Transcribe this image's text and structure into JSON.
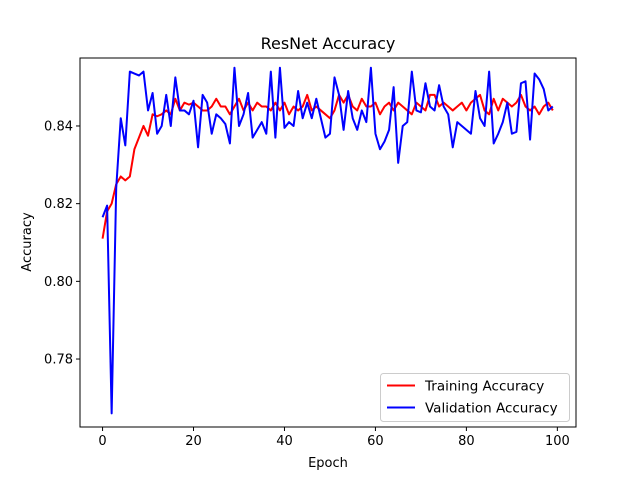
{
  "chart_data": {
    "type": "line",
    "title": "ResNet Accuracy",
    "xlabel": "Epoch",
    "ylabel": "Accuracy",
    "xlim": [
      -4.96,
      104.1
    ],
    "ylim": [
      0.7625,
      0.8575
    ],
    "xticks": [
      0,
      20,
      40,
      60,
      80,
      100
    ],
    "yticks": [
      0.78,
      0.8,
      0.82,
      0.84
    ],
    "ytick_labels": [
      "0.78",
      "0.80",
      "0.82",
      "0.84"
    ],
    "grid": false,
    "legend_position": "lower right",
    "series": [
      {
        "name": "Training Accuracy",
        "color": "#ff0000",
        "x": [
          0,
          1,
          2,
          3,
          4,
          5,
          6,
          7,
          8,
          9,
          10,
          11,
          12,
          13,
          14,
          15,
          16,
          17,
          18,
          19,
          20,
          21,
          22,
          23,
          24,
          25,
          26,
          27,
          28,
          29,
          30,
          31,
          32,
          33,
          34,
          35,
          36,
          37,
          38,
          39,
          40,
          41,
          42,
          43,
          44,
          45,
          46,
          47,
          48,
          49,
          50,
          51,
          52,
          53,
          54,
          55,
          56,
          57,
          58,
          59,
          60,
          61,
          62,
          63,
          64,
          65,
          66,
          67,
          68,
          69,
          70,
          71,
          72,
          73,
          74,
          75,
          76,
          77,
          78,
          79,
          80,
          81,
          82,
          83,
          84,
          85,
          86,
          87,
          88,
          89,
          90,
          91,
          92,
          93,
          94,
          95,
          96,
          97,
          98,
          99
        ],
        "y": [
          0.811,
          0.818,
          0.82,
          0.825,
          0.827,
          0.826,
          0.827,
          0.834,
          0.837,
          0.84,
          0.8375,
          0.843,
          0.8425,
          0.843,
          0.844,
          0.843,
          0.847,
          0.844,
          0.846,
          0.8455,
          0.846,
          0.845,
          0.844,
          0.844,
          0.845,
          0.847,
          0.845,
          0.845,
          0.843,
          0.845,
          0.847,
          0.844,
          0.846,
          0.844,
          0.846,
          0.845,
          0.845,
          0.844,
          0.846,
          0.844,
          0.846,
          0.843,
          0.845,
          0.844,
          0.845,
          0.848,
          0.844,
          0.845,
          0.844,
          0.843,
          0.842,
          0.844,
          0.848,
          0.846,
          0.848,
          0.845,
          0.844,
          0.847,
          0.845,
          0.845,
          0.846,
          0.843,
          0.845,
          0.846,
          0.844,
          0.846,
          0.845,
          0.844,
          0.843,
          0.846,
          0.845,
          0.844,
          0.848,
          0.848,
          0.845,
          0.846,
          0.845,
          0.844,
          0.845,
          0.846,
          0.844,
          0.846,
          0.847,
          0.848,
          0.844,
          0.843,
          0.847,
          0.844,
          0.847,
          0.846,
          0.845,
          0.846,
          0.848,
          0.845,
          0.844,
          0.845,
          0.843,
          0.845,
          0.846,
          0.844
        ]
      },
      {
        "name": "Validation Accuracy",
        "color": "#0000ff",
        "x": [
          0,
          1,
          2,
          3,
          4,
          5,
          6,
          7,
          8,
          9,
          10,
          11,
          12,
          13,
          14,
          15,
          16,
          17,
          18,
          19,
          20,
          21,
          22,
          23,
          24,
          25,
          26,
          27,
          28,
          29,
          30,
          31,
          32,
          33,
          34,
          35,
          36,
          37,
          38,
          39,
          40,
          41,
          42,
          43,
          44,
          45,
          46,
          47,
          48,
          49,
          50,
          51,
          52,
          53,
          54,
          55,
          56,
          57,
          58,
          59,
          60,
          61,
          62,
          63,
          64,
          65,
          66,
          67,
          68,
          69,
          70,
          71,
          72,
          73,
          74,
          75,
          76,
          77,
          78,
          79,
          80,
          81,
          82,
          83,
          84,
          85,
          86,
          87,
          88,
          89,
          90,
          91,
          92,
          93,
          94,
          95,
          96,
          97,
          98,
          99
        ],
        "y": [
          0.8165,
          0.8195,
          0.766,
          0.824,
          0.842,
          0.835,
          0.854,
          0.8535,
          0.853,
          0.854,
          0.844,
          0.8485,
          0.838,
          0.84,
          0.848,
          0.84,
          0.8525,
          0.844,
          0.844,
          0.843,
          0.8465,
          0.8345,
          0.848,
          0.846,
          0.838,
          0.843,
          0.842,
          0.8405,
          0.8355,
          0.855,
          0.84,
          0.843,
          0.8485,
          0.837,
          0.839,
          0.841,
          0.838,
          0.854,
          0.837,
          0.855,
          0.8395,
          0.841,
          0.84,
          0.849,
          0.842,
          0.846,
          0.842,
          0.847,
          0.842,
          0.837,
          0.838,
          0.8525,
          0.848,
          0.839,
          0.849,
          0.842,
          0.839,
          0.844,
          0.841,
          0.855,
          0.838,
          0.834,
          0.836,
          0.839,
          0.85,
          0.8305,
          0.84,
          0.841,
          0.854,
          0.844,
          0.8435,
          0.851,
          0.845,
          0.844,
          0.8505,
          0.845,
          0.843,
          0.8345,
          0.841,
          0.84,
          0.839,
          0.838,
          0.849,
          0.842,
          0.84,
          0.854,
          0.8355,
          0.838,
          0.841,
          0.846,
          0.838,
          0.8385,
          0.851,
          0.8515,
          0.8365,
          0.8535,
          0.852,
          0.8495,
          0.844,
          0.845
        ]
      }
    ]
  }
}
